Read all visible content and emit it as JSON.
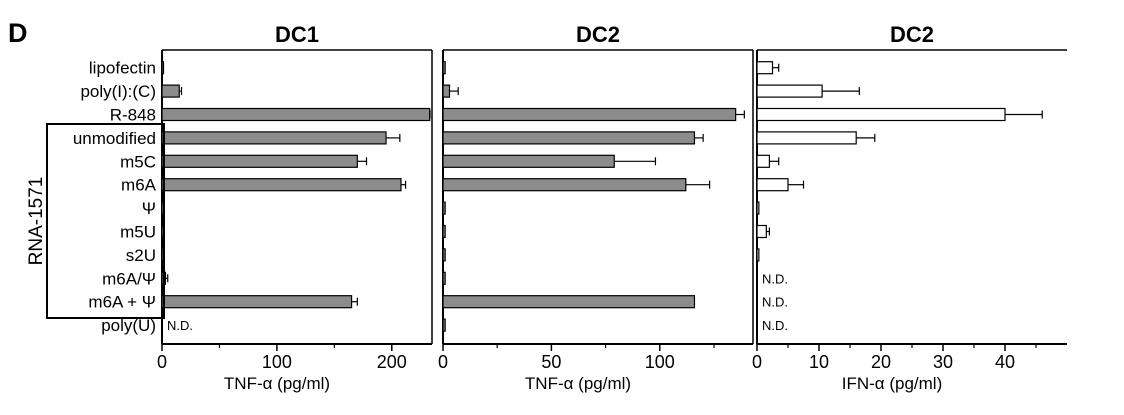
{
  "figure": {
    "panel_label": "D",
    "group_label": "RNA-1571",
    "nd_label": "N.D."
  },
  "chart_data": [
    {
      "type": "bar",
      "orientation": "horizontal",
      "title": "DC1",
      "xlabel": "TNF-α (pg/ml)",
      "xlim": [
        0,
        235
      ],
      "xticks": [
        0,
        100,
        200
      ],
      "bar_color": "#8c8c8c",
      "categories": [
        "lipofectin",
        "poly(I):(C)",
        "R-848",
        "unmodified",
        "m5C",
        "m6A",
        "Ψ",
        "m5U",
        "s2U",
        "m6A/Ψ",
        "m6A + Ψ",
        "poly(U)"
      ],
      "values": [
        0,
        15,
        233,
        195,
        170,
        208,
        1.5,
        0,
        0,
        3,
        165,
        null
      ],
      "errors": [
        0,
        2,
        1,
        12,
        8,
        4,
        0,
        0,
        0,
        2,
        5,
        0
      ],
      "not_determined": [
        "poly(U)"
      ]
    },
    {
      "type": "bar",
      "orientation": "horizontal",
      "title": "DC2",
      "xlabel": "TNF-α (pg/ml)",
      "xlim": [
        0,
        143
      ],
      "xticks": [
        0,
        50,
        100
      ],
      "bar_color": "#8c8c8c",
      "categories": [
        "lipofectin",
        "poly(I):(C)",
        "R-848",
        "unmodified",
        "m5C",
        "m6A",
        "Ψ",
        "m5U",
        "s2U",
        "m6A/Ψ",
        "m6A + Ψ",
        "poly(U)"
      ],
      "values": [
        1,
        3,
        135,
        116,
        79,
        112,
        1,
        1,
        1,
        1,
        116,
        1
      ],
      "errors": [
        0,
        4,
        4,
        4,
        19,
        11,
        0,
        0,
        0,
        0,
        0,
        0
      ],
      "not_determined": []
    },
    {
      "type": "bar",
      "orientation": "horizontal",
      "title": "DC2",
      "xlabel": "IFN-α (pg/ml)",
      "xlim": [
        0,
        50
      ],
      "xticks": [
        0,
        10,
        20,
        30,
        40
      ],
      "bar_color": "#ffffff",
      "categories": [
        "lipofectin",
        "poly(I):(C)",
        "R-848",
        "unmodified",
        "m5C",
        "m6A",
        "Ψ",
        "m5U",
        "s2U",
        "m6A/Ψ",
        "m6A + Ψ",
        "poly(U)"
      ],
      "values": [
        2.5,
        10.5,
        40,
        16,
        2,
        5,
        0.3,
        1.5,
        0.3,
        null,
        null,
        null
      ],
      "errors": [
        1,
        6,
        6,
        3,
        1.5,
        2.5,
        0,
        0.5,
        0,
        0,
        0,
        0
      ],
      "not_determined": [
        "m6A/Ψ",
        "m6A + Ψ",
        "poly(U)"
      ]
    }
  ]
}
